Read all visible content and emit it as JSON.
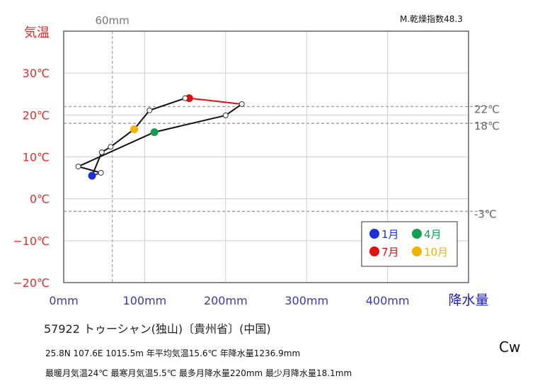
{
  "chart_data": {
    "type": "line",
    "station": "57922 トゥーシャン(独山)〔貴州省〕(中国)",
    "climate_class": "Cw",
    "aridity_index": "M.乾燥指数48.3",
    "info_line1": "25.8N  107.6E 1015.5m  年平均気温15.6℃ 年降水量1236.9mm",
    "info_line2": "最暖月気温24℃ 最寒月気温5.5℃ 最多月降水量220mm 最少月降水量18.1mm",
    "xlabel": "降水量",
    "ylabel": "気温",
    "xlim": [
      0,
      500
    ],
    "ylim": [
      -20,
      40
    ],
    "x_ticks": [
      0,
      100,
      200,
      300,
      400
    ],
    "x_tick_labels": [
      "0mm",
      "100mm",
      "200mm",
      "300mm",
      "400mm"
    ],
    "y_ticks": [
      -20,
      -10,
      0,
      10,
      20,
      30
    ],
    "y_tick_labels": [
      "−20℃",
      "−10℃",
      "0℃",
      "10℃",
      "20℃",
      "30℃"
    ],
    "ref_lines": [
      {
        "axis": "x",
        "value": 60,
        "label": "60mm"
      },
      {
        "axis": "y",
        "value": 22,
        "label": "22℃"
      },
      {
        "axis": "y",
        "value": 18,
        "label": "18℃"
      },
      {
        "axis": "y",
        "value": -3,
        "label": "-3℃"
      }
    ],
    "months": [
      {
        "m": 1,
        "precip": 35,
        "temp": 5.5
      },
      {
        "m": 2,
        "precip": 46,
        "temp": 6.2
      },
      {
        "m": 3,
        "precip": 18,
        "temp": 7.7
      },
      {
        "m": 4,
        "precip": 112,
        "temp": 15.9
      },
      {
        "m": 5,
        "precip": 200,
        "temp": 19.9
      },
      {
        "m": 6,
        "precip": 220,
        "temp": 22.6
      },
      {
        "m": 7,
        "precip": 155,
        "temp": 24.0
      },
      {
        "m": 8,
        "precip": 150,
        "temp": 24.0
      },
      {
        "m": 9,
        "precip": 106,
        "temp": 21.1
      },
      {
        "m": 10,
        "precip": 87,
        "temp": 16.6
      },
      {
        "m": 11,
        "precip": 58,
        "temp": 12.4
      },
      {
        "m": 12,
        "precip": 47,
        "temp": 11.1
      }
    ],
    "highlight_colors": {
      "jan": "#1f2fd6",
      "apr": "#12a050",
      "jul": "#e01010",
      "oct": "#f0b400"
    },
    "legend": {
      "position": "bottom-right",
      "entries": [
        {
          "label": "1月",
          "month": 1,
          "color": "#1f2fd6"
        },
        {
          "label": "4月",
          "month": 4,
          "color": "#12a050"
        },
        {
          "label": "7月",
          "month": 7,
          "color": "#e01010"
        },
        {
          "label": "10月",
          "month": 10,
          "color": "#f0b400"
        }
      ]
    },
    "grid": true
  }
}
